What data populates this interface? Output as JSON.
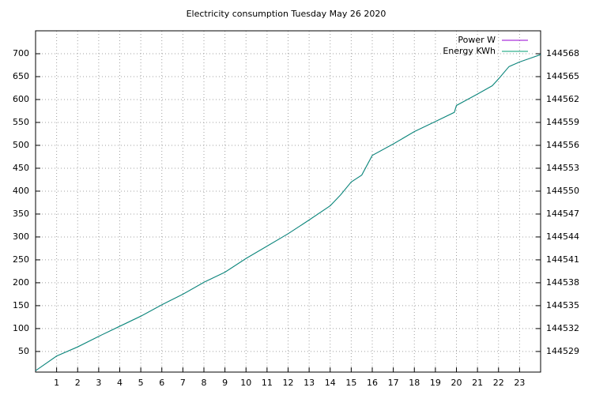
{
  "chart_data": {
    "type": "line",
    "title": "Electricity consumption Tuesday May 26 2020",
    "x": [
      0,
      1,
      2,
      3,
      4,
      5,
      6,
      7,
      8,
      9,
      10,
      11,
      12,
      13,
      14,
      14.5,
      15,
      15.5,
      16,
      17,
      18,
      19,
      19.9,
      20,
      21,
      21.7,
      22,
      22.5,
      23,
      23.5,
      24
    ],
    "series": [
      {
        "name": "Power W",
        "color": "#9400d3",
        "values": [
          8,
          40,
          60,
          83,
          105,
          127,
          152,
          175,
          201,
          223,
          253,
          280,
          307,
          337,
          368,
          392,
          420,
          435,
          478,
          503,
          530,
          552,
          572,
          587,
          612,
          630,
          645,
          672,
          682,
          690,
          698
        ]
      },
      {
        "name": "Energy KWh",
        "color": "#009e73",
        "axis": "y2",
        "values": [
          144526.48,
          144528.4,
          144529.6,
          144530.98,
          144532.3,
          144533.62,
          144535.12,
          144536.5,
          144538.06,
          144539.38,
          144541.18,
          144542.8,
          144544.42,
          144546.22,
          144548.08,
          144549.52,
          144551.2,
          144552.1,
          144554.68,
          144556.18,
          144557.8,
          144559.12,
          144560.32,
          144561.22,
          144562.72,
          144563.8,
          144564.7,
          144566.32,
          144566.92,
          144567.4,
          144567.88
        ]
      }
    ],
    "xlim": [
      0,
      24
    ],
    "xticks": [
      1,
      2,
      3,
      4,
      5,
      6,
      7,
      8,
      9,
      10,
      11,
      12,
      13,
      14,
      15,
      16,
      17,
      18,
      19,
      20,
      21,
      22,
      23
    ],
    "ylim": [
      5,
      750
    ],
    "yticks": [
      50,
      100,
      150,
      200,
      250,
      300,
      350,
      400,
      450,
      500,
      550,
      600,
      650,
      700
    ],
    "y2lim": [
      144526.3,
      144571
    ],
    "y2ticks": [
      144529,
      144532,
      144535,
      144538,
      144541,
      144544,
      144547,
      144550,
      144553,
      144556,
      144559,
      144562,
      144565,
      144568
    ],
    "grid": true,
    "legend": "top-right"
  }
}
